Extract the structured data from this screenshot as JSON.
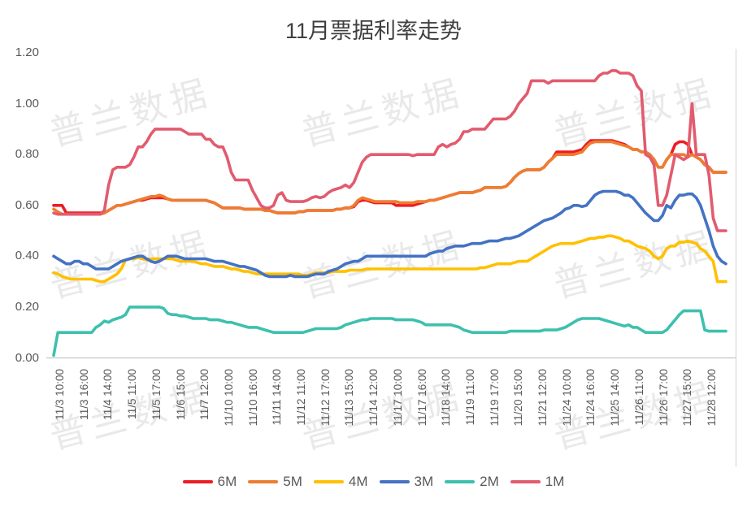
{
  "title": "11月票据利率走势",
  "watermark": {
    "text": "普兰数据"
  },
  "y_axis": {
    "labels": [
      "1.20",
      "1.00",
      "0.80",
      "0.60",
      "0.40",
      "0.20",
      "0.00"
    ]
  },
  "chart_data": {
    "type": "line",
    "title": "11月票据利率走势",
    "xlabel": "",
    "ylabel": "",
    "ylim": [
      0,
      1.2
    ],
    "y_tick_step": 0.2,
    "grid": false,
    "legend_position": "bottom",
    "sampling": "hourly quotes 10:00-17:00 each trading day, 11/3-11/28",
    "x_tick_labels": [
      "11/3 10:00",
      "11/3 16:00",
      "11/4 14:00",
      "11/5 11:00",
      "11/5 17:00",
      "11/6 15:00",
      "11/7 12:00",
      "11/10 10:00",
      "11/10 16:00",
      "11/11 14:00",
      "11/12 11:00",
      "11/12 17:00",
      "11/13 15:00",
      "11/14 12:00",
      "11/17 10:00",
      "11/17 16:00",
      "11/18 14:00",
      "11/19 11:00",
      "11/19 17:00",
      "11/20 15:00",
      "11/21 12:00",
      "11/24 10:00",
      "11/24 16:00",
      "11/25 14:00",
      "11/26 11:00",
      "11/26 17:00",
      "11/27 15:00",
      "11/28 12:00"
    ],
    "series": [
      {
        "name": "6M",
        "color": "#ED1C24",
        "values": [
          0.6,
          0.6,
          0.6,
          0.57,
          0.57,
          0.57,
          0.57,
          0.57,
          0.57,
          0.57,
          0.57,
          0.57,
          0.57,
          0.58,
          0.59,
          0.6,
          0.6,
          0.605,
          0.61,
          0.615,
          0.62,
          0.62,
          0.625,
          0.63,
          0.63,
          0.63,
          0.63,
          0.625,
          0.62,
          0.62,
          0.62,
          0.62,
          0.62,
          0.62,
          0.62,
          0.62,
          0.62,
          0.615,
          0.61,
          0.6,
          0.59,
          0.59,
          0.59,
          0.59,
          0.59,
          0.585,
          0.585,
          0.585,
          0.585,
          0.585,
          0.58,
          0.58,
          0.575,
          0.57,
          0.57,
          0.57,
          0.57,
          0.57,
          0.575,
          0.575,
          0.58,
          0.58,
          0.58,
          0.58,
          0.58,
          0.58,
          0.58,
          0.585,
          0.585,
          0.59,
          0.59,
          0.595,
          0.615,
          0.62,
          0.62,
          0.615,
          0.61,
          0.61,
          0.61,
          0.61,
          0.61,
          0.6,
          0.6,
          0.6,
          0.6,
          0.6,
          0.605,
          0.61,
          0.615,
          0.62,
          0.62,
          0.625,
          0.63,
          0.635,
          0.64,
          0.645,
          0.65,
          0.65,
          0.65,
          0.65,
          0.655,
          0.66,
          0.67,
          0.67,
          0.67,
          0.67,
          0.67,
          0.675,
          0.69,
          0.71,
          0.725,
          0.735,
          0.74,
          0.74,
          0.74,
          0.74,
          0.75,
          0.77,
          0.785,
          0.81,
          0.81,
          0.81,
          0.81,
          0.81,
          0.815,
          0.82,
          0.84,
          0.855,
          0.855,
          0.855,
          0.855,
          0.855,
          0.855,
          0.85,
          0.845,
          0.84,
          0.83,
          0.82,
          0.82,
          0.81,
          0.81,
          0.8,
          0.78,
          0.75,
          0.75,
          0.78,
          0.8,
          0.84,
          0.85,
          0.85,
          0.84,
          0.8,
          0.79,
          0.78,
          0.76,
          0.75,
          0.73,
          0.73,
          0.73,
          0.73
        ]
      },
      {
        "name": "5M",
        "color": "#ED7D31",
        "values": [
          0.585,
          0.575,
          0.565,
          0.565,
          0.565,
          0.565,
          0.565,
          0.565,
          0.565,
          0.565,
          0.565,
          0.565,
          0.57,
          0.58,
          0.59,
          0.6,
          0.6,
          0.605,
          0.61,
          0.615,
          0.62,
          0.625,
          0.63,
          0.635,
          0.635,
          0.64,
          0.635,
          0.625,
          0.62,
          0.62,
          0.62,
          0.62,
          0.62,
          0.62,
          0.62,
          0.62,
          0.62,
          0.615,
          0.61,
          0.6,
          0.59,
          0.59,
          0.59,
          0.59,
          0.59,
          0.585,
          0.585,
          0.585,
          0.585,
          0.585,
          0.58,
          0.58,
          0.575,
          0.57,
          0.57,
          0.57,
          0.57,
          0.57,
          0.575,
          0.575,
          0.58,
          0.58,
          0.58,
          0.58,
          0.58,
          0.58,
          0.58,
          0.585,
          0.585,
          0.59,
          0.59,
          0.6,
          0.62,
          0.63,
          0.625,
          0.62,
          0.615,
          0.615,
          0.615,
          0.615,
          0.615,
          0.615,
          0.61,
          0.61,
          0.61,
          0.61,
          0.615,
          0.615,
          0.615,
          0.62,
          0.62,
          0.625,
          0.63,
          0.635,
          0.64,
          0.645,
          0.65,
          0.65,
          0.65,
          0.65,
          0.655,
          0.66,
          0.67,
          0.67,
          0.67,
          0.67,
          0.67,
          0.675,
          0.69,
          0.71,
          0.725,
          0.735,
          0.74,
          0.74,
          0.74,
          0.74,
          0.75,
          0.77,
          0.785,
          0.8,
          0.8,
          0.8,
          0.8,
          0.8,
          0.805,
          0.81,
          0.83,
          0.845,
          0.85,
          0.85,
          0.85,
          0.85,
          0.85,
          0.845,
          0.84,
          0.835,
          0.83,
          0.82,
          0.82,
          0.81,
          0.81,
          0.8,
          0.78,
          0.75,
          0.75,
          0.78,
          0.8,
          0.8,
          0.8,
          0.8,
          0.79,
          0.8,
          0.79,
          0.78,
          0.76,
          0.75,
          0.73,
          0.73,
          0.73,
          0.73
        ]
      },
      {
        "name": "4M",
        "color": "#FFC000",
        "values": [
          0.335,
          0.33,
          0.32,
          0.315,
          0.31,
          0.31,
          0.31,
          0.31,
          0.31,
          0.31,
          0.305,
          0.3,
          0.3,
          0.31,
          0.32,
          0.33,
          0.35,
          0.385,
          0.39,
          0.39,
          0.395,
          0.39,
          0.385,
          0.39,
          0.39,
          0.39,
          0.39,
          0.39,
          0.39,
          0.385,
          0.38,
          0.38,
          0.38,
          0.38,
          0.375,
          0.37,
          0.37,
          0.365,
          0.36,
          0.36,
          0.36,
          0.355,
          0.35,
          0.35,
          0.345,
          0.34,
          0.34,
          0.335,
          0.33,
          0.33,
          0.33,
          0.33,
          0.33,
          0.33,
          0.33,
          0.33,
          0.33,
          0.33,
          0.33,
          0.325,
          0.325,
          0.33,
          0.335,
          0.335,
          0.335,
          0.335,
          0.34,
          0.34,
          0.34,
          0.34,
          0.345,
          0.345,
          0.345,
          0.345,
          0.35,
          0.35,
          0.35,
          0.35,
          0.35,
          0.35,
          0.35,
          0.35,
          0.35,
          0.35,
          0.35,
          0.35,
          0.35,
          0.35,
          0.35,
          0.35,
          0.35,
          0.35,
          0.35,
          0.35,
          0.35,
          0.35,
          0.35,
          0.35,
          0.35,
          0.35,
          0.35,
          0.355,
          0.355,
          0.36,
          0.365,
          0.37,
          0.37,
          0.37,
          0.37,
          0.375,
          0.38,
          0.38,
          0.38,
          0.39,
          0.4,
          0.41,
          0.42,
          0.43,
          0.44,
          0.445,
          0.45,
          0.45,
          0.45,
          0.45,
          0.455,
          0.46,
          0.465,
          0.47,
          0.47,
          0.475,
          0.475,
          0.48,
          0.48,
          0.475,
          0.47,
          0.46,
          0.46,
          0.45,
          0.44,
          0.435,
          0.43,
          0.42,
          0.4,
          0.39,
          0.4,
          0.43,
          0.44,
          0.44,
          0.455,
          0.455,
          0.46,
          0.455,
          0.45,
          0.43,
          0.42,
          0.4,
          0.38,
          0.3,
          0.3,
          0.3
        ]
      },
      {
        "name": "3M",
        "color": "#4472C4",
        "values": [
          0.4,
          0.39,
          0.38,
          0.37,
          0.37,
          0.38,
          0.38,
          0.37,
          0.37,
          0.36,
          0.35,
          0.35,
          0.35,
          0.35,
          0.36,
          0.37,
          0.38,
          0.385,
          0.39,
          0.395,
          0.4,
          0.4,
          0.39,
          0.38,
          0.375,
          0.38,
          0.39,
          0.4,
          0.4,
          0.4,
          0.395,
          0.39,
          0.39,
          0.39,
          0.39,
          0.39,
          0.39,
          0.385,
          0.38,
          0.38,
          0.38,
          0.375,
          0.37,
          0.365,
          0.36,
          0.36,
          0.355,
          0.35,
          0.345,
          0.335,
          0.325,
          0.32,
          0.32,
          0.32,
          0.32,
          0.32,
          0.325,
          0.32,
          0.32,
          0.32,
          0.32,
          0.325,
          0.33,
          0.33,
          0.33,
          0.34,
          0.345,
          0.35,
          0.36,
          0.37,
          0.375,
          0.38,
          0.38,
          0.39,
          0.4,
          0.4,
          0.4,
          0.4,
          0.4,
          0.4,
          0.4,
          0.4,
          0.4,
          0.4,
          0.4,
          0.4,
          0.4,
          0.4,
          0.4,
          0.41,
          0.415,
          0.42,
          0.42,
          0.43,
          0.435,
          0.44,
          0.44,
          0.44,
          0.445,
          0.45,
          0.45,
          0.45,
          0.455,
          0.46,
          0.46,
          0.46,
          0.465,
          0.47,
          0.47,
          0.475,
          0.48,
          0.49,
          0.5,
          0.51,
          0.52,
          0.53,
          0.54,
          0.545,
          0.55,
          0.56,
          0.57,
          0.585,
          0.59,
          0.6,
          0.6,
          0.595,
          0.6,
          0.62,
          0.64,
          0.65,
          0.655,
          0.655,
          0.655,
          0.655,
          0.65,
          0.64,
          0.64,
          0.63,
          0.61,
          0.59,
          0.57,
          0.555,
          0.54,
          0.54,
          0.56,
          0.6,
          0.59,
          0.62,
          0.64,
          0.64,
          0.645,
          0.645,
          0.63,
          0.6,
          0.55,
          0.5,
          0.44,
          0.4,
          0.38,
          0.37
        ]
      },
      {
        "name": "2M",
        "color": "#3EC0AE",
        "values": [
          0.01,
          0.1,
          0.1,
          0.1,
          0.1,
          0.1,
          0.1,
          0.1,
          0.1,
          0.1,
          0.12,
          0.13,
          0.145,
          0.14,
          0.15,
          0.155,
          0.16,
          0.17,
          0.2,
          0.2,
          0.2,
          0.2,
          0.2,
          0.2,
          0.2,
          0.2,
          0.195,
          0.175,
          0.17,
          0.17,
          0.165,
          0.165,
          0.16,
          0.155,
          0.155,
          0.155,
          0.155,
          0.15,
          0.15,
          0.15,
          0.145,
          0.14,
          0.14,
          0.135,
          0.13,
          0.125,
          0.12,
          0.12,
          0.12,
          0.115,
          0.11,
          0.105,
          0.1,
          0.1,
          0.1,
          0.1,
          0.1,
          0.1,
          0.1,
          0.1,
          0.105,
          0.11,
          0.115,
          0.115,
          0.115,
          0.115,
          0.115,
          0.115,
          0.12,
          0.13,
          0.135,
          0.14,
          0.145,
          0.15,
          0.15,
          0.155,
          0.155,
          0.155,
          0.155,
          0.155,
          0.155,
          0.15,
          0.15,
          0.15,
          0.15,
          0.15,
          0.145,
          0.14,
          0.13,
          0.13,
          0.13,
          0.13,
          0.13,
          0.13,
          0.13,
          0.125,
          0.12,
          0.11,
          0.105,
          0.1,
          0.1,
          0.1,
          0.1,
          0.1,
          0.1,
          0.1,
          0.1,
          0.1,
          0.105,
          0.105,
          0.105,
          0.105,
          0.105,
          0.105,
          0.105,
          0.105,
          0.11,
          0.11,
          0.11,
          0.11,
          0.115,
          0.12,
          0.13,
          0.14,
          0.15,
          0.155,
          0.155,
          0.155,
          0.155,
          0.155,
          0.15,
          0.145,
          0.14,
          0.135,
          0.13,
          0.125,
          0.13,
          0.12,
          0.12,
          0.11,
          0.1,
          0.1,
          0.1,
          0.1,
          0.1,
          0.11,
          0.13,
          0.15,
          0.17,
          0.185,
          0.185,
          0.185,
          0.185,
          0.185,
          0.11,
          0.105,
          0.105,
          0.105,
          0.105,
          0.105
        ]
      },
      {
        "name": "1M",
        "color": "#E25B6E",
        "values": [
          0.57,
          0.565,
          0.565,
          0.565,
          0.565,
          0.565,
          0.565,
          0.565,
          0.565,
          0.565,
          0.565,
          0.565,
          0.58,
          0.68,
          0.74,
          0.75,
          0.75,
          0.75,
          0.76,
          0.79,
          0.83,
          0.83,
          0.85,
          0.88,
          0.9,
          0.9,
          0.9,
          0.9,
          0.9,
          0.9,
          0.9,
          0.89,
          0.88,
          0.88,
          0.88,
          0.88,
          0.86,
          0.86,
          0.84,
          0.83,
          0.83,
          0.79,
          0.73,
          0.7,
          0.7,
          0.7,
          0.7,
          0.66,
          0.63,
          0.6,
          0.59,
          0.59,
          0.6,
          0.64,
          0.65,
          0.62,
          0.615,
          0.615,
          0.615,
          0.615,
          0.62,
          0.63,
          0.635,
          0.63,
          0.635,
          0.65,
          0.66,
          0.665,
          0.67,
          0.68,
          0.67,
          0.69,
          0.73,
          0.77,
          0.79,
          0.8,
          0.8,
          0.8,
          0.8,
          0.8,
          0.8,
          0.8,
          0.8,
          0.8,
          0.8,
          0.795,
          0.8,
          0.8,
          0.8,
          0.8,
          0.8,
          0.83,
          0.84,
          0.83,
          0.84,
          0.845,
          0.86,
          0.89,
          0.89,
          0.9,
          0.9,
          0.9,
          0.9,
          0.92,
          0.94,
          0.94,
          0.94,
          0.94,
          0.95,
          0.97,
          1.0,
          1.02,
          1.04,
          1.09,
          1.09,
          1.09,
          1.09,
          1.08,
          1.09,
          1.09,
          1.09,
          1.09,
          1.09,
          1.09,
          1.09,
          1.09,
          1.09,
          1.09,
          1.09,
          1.11,
          1.12,
          1.12,
          1.13,
          1.13,
          1.12,
          1.12,
          1.12,
          1.11,
          1.07,
          1.05,
          0.8,
          0.79,
          0.76,
          0.6,
          0.6,
          0.64,
          0.72,
          0.8,
          0.79,
          0.78,
          0.79,
          1.0,
          0.8,
          0.8,
          0.8,
          0.72,
          0.55,
          0.5,
          0.5,
          0.5
        ]
      }
    ]
  }
}
